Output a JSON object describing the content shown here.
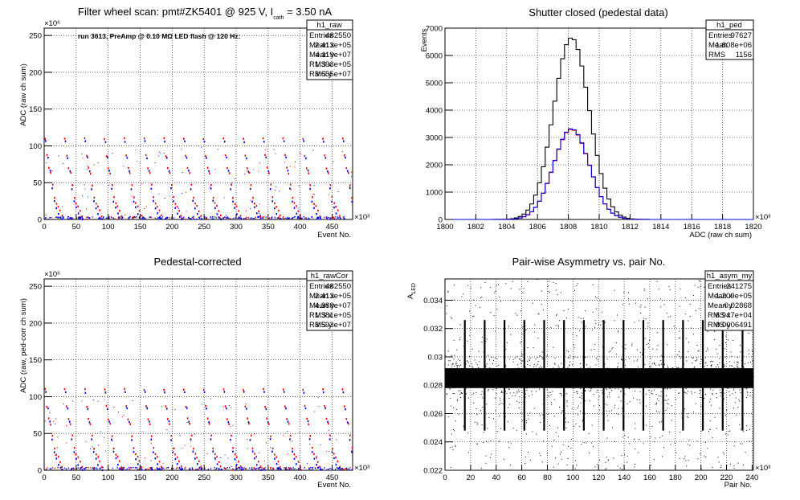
{
  "colors": {
    "black": "#000000",
    "red": "#e8000b",
    "blue": "#0000d8",
    "purple": "#6a0dad"
  },
  "chart_data": [
    {
      "id": "raw",
      "type": "scatter",
      "title_main": "Filter wheel scan: pmt#ZK5401 @   925 V, I",
      "title_sub": "cath",
      "title_tail": " = 3.50 nA",
      "note": "run 3613, PreAmp @ 0.10 MΩ LED flash @  120 Hz:",
      "xlabel": "Event No.",
      "ylabel": "ADC (raw ch sum)",
      "x_exponent": "×10³",
      "y_exponent": "×10⁶",
      "xlim": [
        0,
        482
      ],
      "ylim": [
        0,
        260
      ],
      "xticks": [
        "0",
        "50",
        "100",
        "150",
        "200",
        "250",
        "300",
        "350",
        "400",
        "450"
      ],
      "yticks": [
        "0",
        "50",
        "100",
        "150",
        "200",
        "250"
      ],
      "grid": true,
      "stats": {
        "name": "h1_raw",
        "rows": [
          {
            "label": "Entries",
            "value": "482550"
          },
          {
            "label": "Mean x",
            "value": "2.413e+05"
          },
          {
            "label": "Mean y",
            "value": "4.119e+07"
          },
          {
            "label": "RMS x",
            "value": "1.393e+05"
          },
          {
            "label": "RMS y",
            "value": "3.655e+07"
          }
        ]
      },
      "series": [
        {
          "color": "red",
          "cycle_x": 31,
          "levels": [
            110,
            87,
            70,
            63,
            47,
            30,
            22,
            18,
            12,
            5
          ]
        },
        {
          "color": "blue",
          "cycle_x": 31,
          "levels": [
            106,
            84,
            66,
            42,
            25,
            16,
            8,
            3,
            1
          ]
        }
      ]
    },
    {
      "id": "ped",
      "type": "histogram",
      "title": "Shutter closed (pedestal data)",
      "xlabel": "ADC (raw ch sum)",
      "ylabel": "Events",
      "x_exponent": "×10³",
      "xlim": [
        1800,
        1820
      ],
      "ylim": [
        0,
        7000
      ],
      "xticks": [
        "1800",
        "1802",
        "1804",
        "1806",
        "1808",
        "1810",
        "1812",
        "1814",
        "1816",
        "1818",
        "1820"
      ],
      "yticks": [
        "0",
        "1000",
        "2000",
        "3000",
        "4000",
        "5000",
        "6000",
        "7000"
      ],
      "grid": true,
      "stats": {
        "name": "h1_ped",
        "rows": [
          {
            "label": "Entries",
            "value": "97627"
          },
          {
            "label": "Mean",
            "value": "1.808e+06"
          },
          {
            "label": "RMS",
            "value": "1156"
          }
        ]
      },
      "series": [
        {
          "color": "black",
          "mean": 1808.2,
          "sigma": 1.16,
          "peak": 6650
        },
        {
          "color": "red",
          "mean": 1808.2,
          "sigma": 1.16,
          "peak": 3300
        },
        {
          "color": "blue",
          "mean": 1808.2,
          "sigma": 1.16,
          "peak": 3320
        }
      ]
    },
    {
      "id": "rawCor",
      "type": "scatter",
      "title": "Pedestal-corrected",
      "xlabel": "Event No.",
      "ylabel": "ADC (raw, ped-corr ch sum)",
      "x_exponent": "×10³",
      "y_exponent": "×10⁶",
      "xlim": [
        0,
        482
      ],
      "ylim": [
        0,
        260
      ],
      "xticks": [
        "0",
        "50",
        "100",
        "150",
        "200",
        "250",
        "300",
        "350",
        "400",
        "450"
      ],
      "yticks": [
        "0",
        "50",
        "100",
        "150",
        "200",
        "250"
      ],
      "grid": true,
      "stats": {
        "name": "h1_rawCor",
        "rows": [
          {
            "label": "Entries",
            "value": "482550"
          },
          {
            "label": "Mean x",
            "value": "2.413e+05"
          },
          {
            "label": "Mean y",
            "value": "4.388e+07"
          },
          {
            "label": "RMS x",
            "value": "1.381e+05"
          },
          {
            "label": "RMS y",
            "value": "3.593e+07"
          }
        ]
      },
      "series": [
        {
          "color": "red",
          "cycle_x": 31,
          "levels": [
            110,
            87,
            70,
            63,
            47,
            30,
            22,
            18,
            12,
            5
          ]
        },
        {
          "color": "blue",
          "cycle_x": 31,
          "levels": [
            106,
            84,
            66,
            42,
            25,
            16,
            8,
            3,
            1
          ]
        }
      ]
    },
    {
      "id": "asym",
      "type": "scatter",
      "title": "Pair-wise Asymmetry vs. pair No.",
      "xlabel": "Pair No.",
      "ylabel": "A",
      "ylabel_sub": "LED",
      "x_exponent": "×10³",
      "xlim": [
        0,
        241
      ],
      "ylim": [
        0.022,
        0.0355
      ],
      "xticks": [
        "0",
        "20",
        "40",
        "60",
        "80",
        "100",
        "120",
        "140",
        "160",
        "180",
        "200",
        "220",
        "240"
      ],
      "yticks": [
        "0.022",
        "0.024",
        "0.026",
        "0.028",
        "0.03",
        "0.032",
        "0.034"
      ],
      "grid": true,
      "stats": {
        "name": "h1_asym_my",
        "rows": [
          {
            "label": "Entries",
            "value": "241275"
          },
          {
            "label": "Mean x",
            "value": "1.209e+05"
          },
          {
            "label": "Mean y",
            "value": "0.02868"
          },
          {
            "label": "RMS x",
            "value": "6.947e+04"
          },
          {
            "label": "RMS y",
            "value": "0.0006491"
          }
        ]
      },
      "series": [
        {
          "color": "black",
          "center": 0.0285,
          "spikes_every": 15.5
        }
      ]
    }
  ]
}
